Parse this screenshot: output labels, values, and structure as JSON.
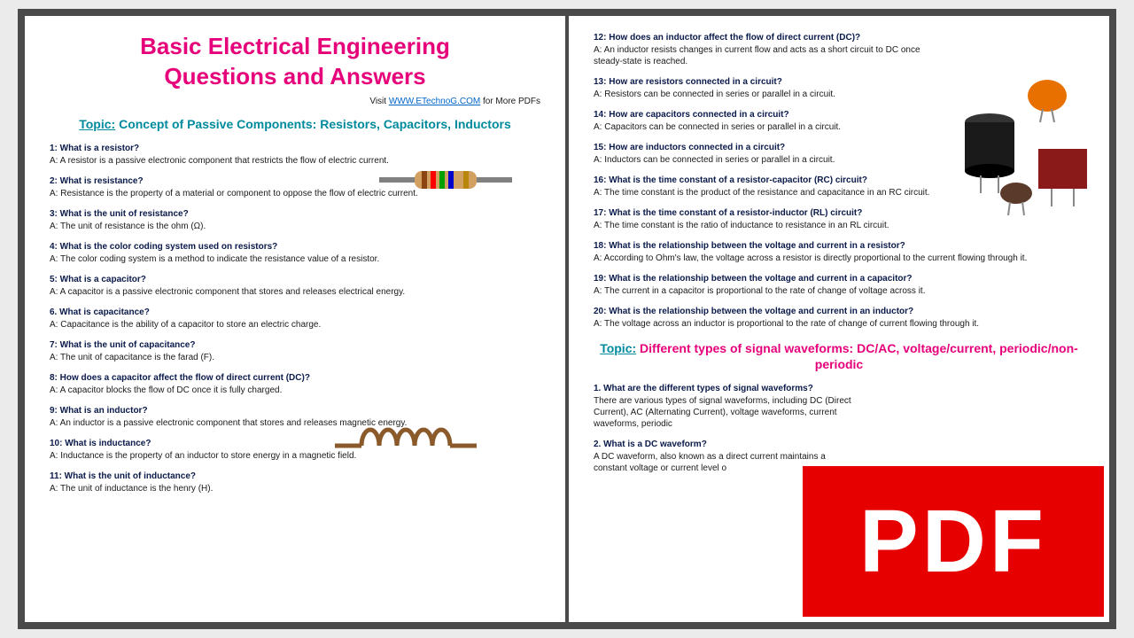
{
  "colors": {
    "title": "#e6007a",
    "topic": "#008a9e",
    "question": "#0a1a4a",
    "answer": "#1a1a1a",
    "link": "#0066cc",
    "pdf_bg": "#e60000",
    "pdf_text": "#ffffff"
  },
  "header": {
    "title_line1": "Basic Electrical Engineering",
    "title_line2": "Questions and Answers",
    "visit_prefix": "Visit ",
    "visit_link": "WWW.ETechnoG.COM",
    "visit_suffix": " for More PDFs"
  },
  "topic1_label": "Topic:",
  "topic1_text": " Concept of Passive Components: Resistors, Capacitors, Inductors",
  "left_qa": [
    {
      "q": "1: What is a resistor?",
      "a": "A: A resistor is a passive electronic component that restricts the flow of electric current."
    },
    {
      "q": "2: What is resistance?",
      "a": "A: Resistance is the property of a material or component to oppose the flow of electric current."
    },
    {
      "q": "3: What is the unit of resistance?",
      "a": "A: The unit of resistance is the ohm (Ω)."
    },
    {
      "q": "4: What is the color coding system used on resistors?",
      "a": "A: The color coding system is a method to indicate the resistance value of a resistor."
    },
    {
      "q": "5: What is a capacitor?",
      "a": "A: A capacitor is a passive electronic component that stores and releases electrical energy."
    },
    {
      "q": "6. What is capacitance?",
      "a": "A: Capacitance is the ability of a capacitor to store an electric charge."
    },
    {
      "q": "7: What is the unit of capacitance?",
      "a": "A: The unit of capacitance is the farad (F)."
    },
    {
      "q": "8: How does a capacitor affect the flow of direct current (DC)?",
      "a": "A: A capacitor blocks the flow of DC once it is fully charged."
    },
    {
      "q": "9: What is an inductor?",
      "a": "A: An inductor is a passive electronic component that stores and releases magnetic energy."
    },
    {
      "q": "10: What is inductance?",
      "a": "A: Inductance is the property of an inductor to store energy in a magnetic field."
    },
    {
      "q": "11: What is the unit of inductance?",
      "a": "A: The unit of inductance is the henry (H)."
    }
  ],
  "right_qa": [
    {
      "q": "12: How does an inductor affect the flow of direct current (DC)?",
      "a": "A: An inductor resists changes in current flow and acts as a short circuit to DC once steady-state is reached."
    },
    {
      "q": "13: How are resistors connected in a circuit?",
      "a": "A: Resistors can be connected in series or parallel in a circuit."
    },
    {
      "q": "14: How are capacitors connected in a circuit?",
      "a": "A: Capacitors can be connected in series or parallel in a circuit."
    },
    {
      "q": "15: How are inductors connected in a circuit?",
      "a": "A: Inductors can be connected in series or parallel in a circuit."
    },
    {
      "q": "16: What is the time constant of a resistor-capacitor (RC) circuit?",
      "a": "A: The time constant is the product of the resistance and capacitance in an RC circuit."
    },
    {
      "q": "17: What is the time constant of a resistor-inductor (RL) circuit?",
      "a": "A: The time constant is the ratio of inductance to resistance in an RL circuit."
    },
    {
      "q": "18: What is the relationship between the voltage and current in a resistor?",
      "a": "A: According to Ohm's law, the voltage across a resistor is directly proportional to the current flowing through it."
    },
    {
      "q": "19: What is the relationship between the voltage and current in a capacitor?",
      "a": "A: The current in a capacitor is proportional to the rate of change of voltage across it."
    },
    {
      "q": "20: What is the relationship between the voltage and current in an inductor?",
      "a": "A: The voltage across an inductor is proportional to the rate of change of current flowing through it."
    }
  ],
  "topic2_label": "Topic:",
  "topic2_text": " Different types of signal waveforms: DC/AC, voltage/current, periodic/non-periodic",
  "right_qa2": [
    {
      "q": "1. What are the different types of signal waveforms?",
      "a": "There are various types of signal waveforms, including DC (Direct Current), AC (Alternating Current), voltage waveforms, current waveforms, periodic"
    },
    {
      "q": "2. What is a DC waveform?",
      "a": "A DC waveform, also known as a direct current maintains a constant voltage or current level o"
    }
  ],
  "pdf_label": "PDF",
  "art": {
    "resistor": {
      "lead": "#808080",
      "body": "#d2a060",
      "bands": [
        "#8b4513",
        "#ff0000",
        "#00a000",
        "#0000cc",
        "#b8860b"
      ]
    },
    "inductor": {
      "wire": "#8b5a2b",
      "loops": 5
    },
    "capacitors": {
      "disc": "#e87000",
      "cyl": "#1a1a1a",
      "box": "#8a1a1a",
      "small": "#5a3a2a"
    }
  }
}
